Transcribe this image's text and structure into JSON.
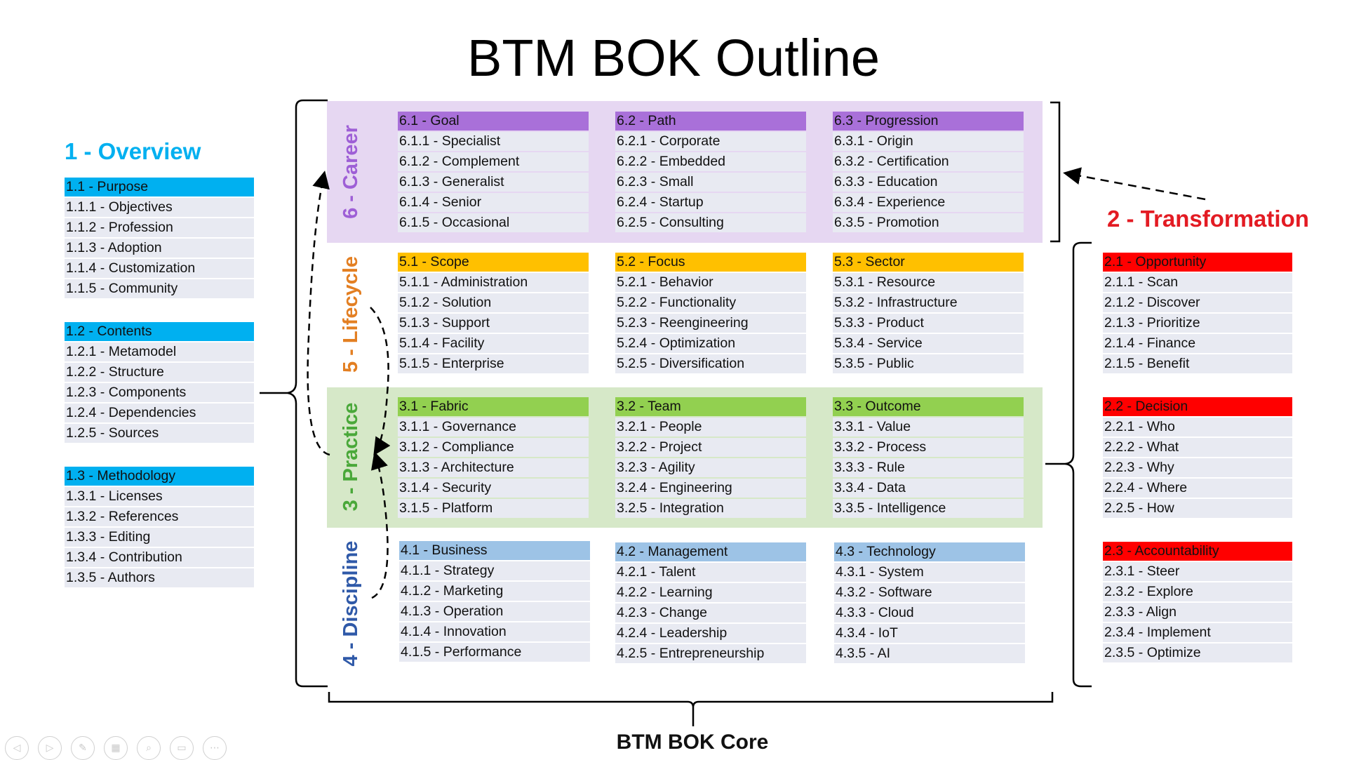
{
  "title": "BTM BOK Outline",
  "core_label": "BTM BOK Core",
  "colors": {
    "overview": "#00b0f0",
    "transformation": "#e31b23",
    "career": "#9e5fd6",
    "lifecycle": "#e37f22",
    "practice": "#4aa83a",
    "discipline": "#2f59a8",
    "head_overview": "#00b0f0",
    "head_transformation": "#ff0000",
    "head_career": "#a970d9",
    "head_lifecycle": "#ffc000",
    "head_practice": "#92d050",
    "head_discipline": "#9dc3e6",
    "band_career": "#e6d7f2",
    "band_practice": "#d6e8c8",
    "row": "#e8eaf2"
  },
  "overview": {
    "title": "1 - Overview",
    "groups": [
      {
        "head": "1.1 - Purpose",
        "items": [
          "1.1.1 - Objectives",
          "1.1.2 - Profession",
          "1.1.3 - Adoption",
          "1.1.4 - Customization",
          "1.1.5 - Community"
        ]
      },
      {
        "head": "1.2 - Contents",
        "items": [
          "1.2.1 - Metamodel",
          "1.2.2 - Structure",
          "1.2.3 - Components",
          "1.2.4 - Dependencies",
          "1.2.5 - Sources"
        ]
      },
      {
        "head": "1.3 - Methodology",
        "items": [
          "1.3.1 - Licenses",
          "1.3.2 - References",
          "1.3.3 - Editing",
          "1.3.4 - Contribution",
          "1.3.5 - Authors"
        ]
      }
    ]
  },
  "transformation": {
    "title": "2 - Transformation",
    "groups": [
      {
        "head": "2.1 - Opportunity",
        "items": [
          "2.1.1 - Scan",
          "2.1.2 - Discover",
          "2.1.3 - Prioritize",
          "2.1.4 - Finance",
          "2.1.5 - Benefit"
        ]
      },
      {
        "head": "2.2 - Decision",
        "items": [
          "2.2.1 - Who",
          "2.2.2 - What",
          "2.2.3 - Why",
          "2.2.4 - Where",
          "2.2.5 - How"
        ]
      },
      {
        "head": "2.3 - Accountability",
        "items": [
          "2.3.1 - Steer",
          "2.3.2 - Explore",
          "2.3.3 - Align",
          "2.3.4 - Implement",
          "2.3.5 - Optimize"
        ]
      }
    ]
  },
  "career": {
    "label": "6 - Career",
    "groups": [
      {
        "head": "6.1 - Goal",
        "items": [
          "6.1.1 - Specialist",
          "6.1.2 - Complement",
          "6.1.3 - Generalist",
          "6.1.4 - Senior",
          "6.1.5 - Occasional"
        ]
      },
      {
        "head": "6.2 - Path",
        "items": [
          "6.2.1 - Corporate",
          "6.2.2 - Embedded",
          "6.2.3 - Small",
          "6.2.4 - Startup",
          "6.2.5 - Consulting"
        ]
      },
      {
        "head": "6.3 - Progression",
        "items": [
          "6.3.1 - Origin",
          "6.3.2 - Certification",
          "6.3.3 - Education",
          "6.3.4 - Experience",
          "6.3.5 - Promotion"
        ]
      }
    ]
  },
  "lifecycle": {
    "label": "5 - Lifecycle",
    "groups": [
      {
        "head": "5.1 - Scope",
        "items": [
          "5.1.1 - Administration",
          "5.1.2 - Solution",
          "5.1.3 - Support",
          "5.1.4 - Facility",
          "5.1.5 - Enterprise"
        ]
      },
      {
        "head": "5.2 - Focus",
        "items": [
          "5.2.1 - Behavior",
          "5.2.2 - Functionality",
          "5.2.3 - Reengineering",
          "5.2.4 - Optimization",
          "5.2.5 - Diversification"
        ]
      },
      {
        "head": "5.3 - Sector",
        "items": [
          "5.3.1 - Resource",
          "5.3.2 - Infrastructure",
          "5.3.3 - Product",
          "5.3.4 - Service",
          "5.3.5 - Public"
        ]
      }
    ]
  },
  "practice": {
    "label": "3 - Practice",
    "groups": [
      {
        "head": "3.1 - Fabric",
        "items": [
          "3.1.1 - Governance",
          "3.1.2 - Compliance",
          "3.1.3 - Architecture",
          "3.1.4 - Security",
          "3.1.5 - Platform"
        ]
      },
      {
        "head": "3.2 - Team",
        "items": [
          "3.2.1 - People",
          "3.2.2 - Project",
          "3.2.3 - Agility",
          "3.2.4 - Engineering",
          "3.2.5 - Integration"
        ]
      },
      {
        "head": "3.3 - Outcome",
        "items": [
          "3.3.1 - Value",
          "3.3.2 - Process",
          "3.3.3 - Rule",
          "3.3.4 - Data",
          "3.3.5 - Intelligence"
        ]
      }
    ]
  },
  "discipline": {
    "label": "4 - Discipline",
    "groups": [
      {
        "head": "4.1 - Business",
        "items": [
          "4.1.1 - Strategy",
          "4.1.2 - Marketing",
          "4.1.3 - Operation",
          "4.1.4 - Innovation",
          "4.1.5 - Performance"
        ]
      },
      {
        "head": "4.2 - Management",
        "items": [
          "4.2.1 - Talent",
          "4.2.2 - Learning",
          "4.2.3 - Change",
          "4.2.4 - Leadership",
          "4.2.5 - Entrepreneurship"
        ]
      },
      {
        "head": "4.3 - Technology",
        "items": [
          "4.3.1 - System",
          "4.3.2 - Software",
          "4.3.3 - Cloud",
          "4.3.4 - IoT",
          "4.3.5 - AI"
        ]
      }
    ]
  },
  "nav_icons": [
    "previous-icon",
    "next-icon",
    "pen-icon",
    "slides-icon",
    "zoom-icon",
    "subtitles-icon",
    "more-icon"
  ]
}
